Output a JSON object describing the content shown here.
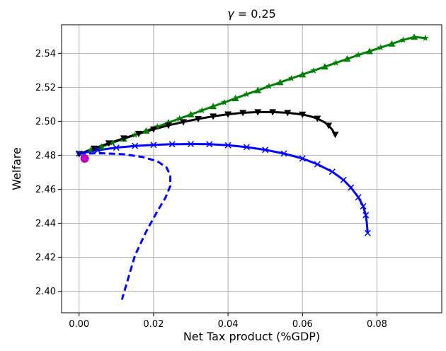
{
  "chart_data": {
    "type": "line",
    "title_prefix": "γ",
    "title_rest": " = 0.25",
    "xlabel": "Net Tax product (%GDP)",
    "ylabel": "Welfare",
    "xlim": [
      -0.0047,
      0.0974
    ],
    "ylim": [
      2.3873,
      2.5568
    ],
    "xticks": [
      0.0,
      0.02,
      0.04,
      0.06,
      0.08
    ],
    "xtick_labels": [
      "0.00",
      "0.02",
      "0.04",
      "0.06",
      "0.08"
    ],
    "yticks": [
      2.4,
      2.42,
      2.44,
      2.46,
      2.48,
      2.5,
      2.52,
      2.54
    ],
    "ytick_labels": [
      "2.40",
      "2.42",
      "2.44",
      "2.46",
      "2.48",
      "2.50",
      "2.52",
      "2.54"
    ],
    "grid": true,
    "legend": "none",
    "colors": {
      "green": "#008000",
      "black": "#000000",
      "blue": "#0000ff",
      "magenta": "#bf00bf"
    },
    "series": [
      {
        "color": "green",
        "style": "solid",
        "width": 3,
        "x": [
          0.0,
          0.003,
          0.006,
          0.009,
          0.012,
          0.015,
          0.018,
          0.021,
          0.024,
          0.027,
          0.03,
          0.033,
          0.036,
          0.039,
          0.042,
          0.045,
          0.048,
          0.051,
          0.054,
          0.057,
          0.06,
          0.063,
          0.066,
          0.069,
          0.072,
          0.075,
          0.078,
          0.081,
          0.084,
          0.087,
          0.09,
          0.093
        ],
        "y": [
          2.4808,
          2.4829,
          2.485,
          2.4873,
          2.4897,
          2.492,
          2.4944,
          2.4968,
          2.4992,
          2.5016,
          2.504,
          2.5064,
          2.5088,
          2.5111,
          2.5135,
          2.5159,
          2.5182,
          2.5206,
          2.5229,
          2.5252,
          2.5275,
          2.5298,
          2.5321,
          2.5344,
          2.5367,
          2.539,
          2.5412,
          2.5434,
          2.5456,
          2.5478,
          2.5496,
          2.549
        ]
      },
      {
        "color": "black",
        "style": "solid",
        "width": 3,
        "x": [
          0.0,
          0.004,
          0.008,
          0.012,
          0.016,
          0.02,
          0.024,
          0.028,
          0.032,
          0.036,
          0.04,
          0.044,
          0.048,
          0.052,
          0.056,
          0.06,
          0.062,
          0.064,
          0.066,
          0.067,
          0.068,
          0.0688
        ],
        "y": [
          2.4808,
          2.484,
          2.4871,
          2.49,
          2.4927,
          2.4953,
          2.4976,
          2.4996,
          2.5014,
          2.5029,
          2.5041,
          2.505,
          2.5054,
          2.5054,
          2.505,
          2.504,
          2.503,
          2.5016,
          2.4993,
          2.4975,
          2.495,
          2.4922
        ]
      },
      {
        "color": "blue",
        "style": "solid",
        "width": 3,
        "x": [
          0.0,
          0.005,
          0.01,
          0.015,
          0.02,
          0.025,
          0.03,
          0.035,
          0.04,
          0.045,
          0.05,
          0.055,
          0.06,
          0.064,
          0.068,
          0.071,
          0.073,
          0.075,
          0.0763,
          0.077,
          0.0773,
          0.0775
        ],
        "y": [
          2.481,
          2.483,
          2.4845,
          2.4855,
          2.4861,
          2.4865,
          2.4866,
          2.4865,
          2.4859,
          2.4848,
          2.4832,
          2.481,
          2.4781,
          2.4747,
          2.4703,
          2.4655,
          2.461,
          2.4553,
          2.45,
          2.4448,
          2.4398,
          2.4342
        ]
      },
      {
        "color": "blue",
        "style": "dashed",
        "width": 3,
        "x": [
          0.0,
          0.006,
          0.012,
          0.017,
          0.021,
          0.0235,
          0.0245,
          0.0245,
          0.0232,
          0.021,
          0.018,
          0.015,
          0.0115
        ],
        "y": [
          2.481,
          2.4812,
          2.4806,
          2.479,
          2.4765,
          2.4728,
          2.468,
          2.462,
          2.455,
          2.447,
          2.435,
          2.421,
          2.395
        ]
      }
    ],
    "markers": [
      {
        "color": "green",
        "shape": "triangle-up",
        "x": [
          0.006,
          0.012,
          0.018,
          0.024,
          0.03,
          0.036,
          0.042,
          0.048,
          0.054,
          0.06,
          0.066,
          0.072,
          0.078,
          0.084,
          0.09
        ],
        "y": [
          2.485,
          2.4897,
          2.4944,
          2.4992,
          2.504,
          2.5088,
          2.5135,
          2.5182,
          2.5229,
          2.5275,
          2.5321,
          2.5367,
          2.5412,
          2.5456,
          2.5496
        ]
      },
      {
        "color": "green",
        "shape": "star",
        "x": [
          0.003,
          0.009,
          0.015,
          0.021,
          0.027,
          0.033,
          0.039,
          0.045,
          0.051,
          0.057,
          0.063,
          0.069,
          0.075,
          0.081,
          0.087,
          0.093
        ],
        "y": [
          2.4829,
          2.4873,
          2.492,
          2.4968,
          2.5016,
          2.5064,
          2.5111,
          2.5159,
          2.5206,
          2.5252,
          2.5298,
          2.5344,
          2.539,
          2.5434,
          2.5478,
          2.549
        ]
      },
      {
        "color": "black",
        "shape": "triangle-down",
        "x": [
          0.0,
          0.004,
          0.008,
          0.012,
          0.016,
          0.02,
          0.024,
          0.028,
          0.032,
          0.036,
          0.04,
          0.044,
          0.048,
          0.052,
          0.056,
          0.06,
          0.064,
          0.067,
          0.0688
        ],
        "y": [
          2.4808,
          2.484,
          2.4871,
          2.49,
          2.4927,
          2.4953,
          2.4976,
          2.4996,
          2.5014,
          2.5029,
          2.5041,
          2.505,
          2.5054,
          2.5054,
          2.505,
          2.504,
          2.5016,
          2.4975,
          2.4922
        ]
      },
      {
        "color": "blue",
        "shape": "x",
        "x": [
          0.0,
          0.005,
          0.01,
          0.015,
          0.02,
          0.025,
          0.03,
          0.035,
          0.04,
          0.045,
          0.05,
          0.055,
          0.06,
          0.064,
          0.068,
          0.071,
          0.073,
          0.075,
          0.0763,
          0.077,
          0.0775
        ],
        "y": [
          2.481,
          2.483,
          2.4845,
          2.4855,
          2.4861,
          2.4865,
          2.4866,
          2.4865,
          2.4859,
          2.4848,
          2.4832,
          2.481,
          2.4781,
          2.4747,
          2.4703,
          2.4655,
          2.461,
          2.4553,
          2.45,
          2.4448,
          2.4342
        ]
      },
      {
        "color": "magenta",
        "shape": "circle",
        "x": [
          0.0015
        ],
        "y": [
          2.4781
        ]
      }
    ]
  }
}
